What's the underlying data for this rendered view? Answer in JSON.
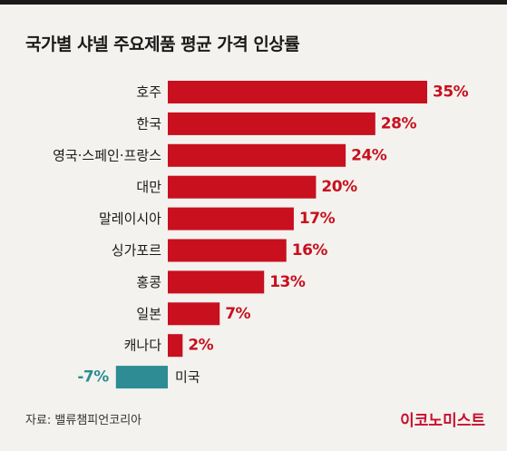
{
  "title": "국가별 샤넬 주요제품 평균 가격 인상률",
  "source": "자료: 밸류챔피언코리아",
  "brand": "이코노미스트",
  "colors": {
    "positive": "#c8101e",
    "negative": "#2d8c94",
    "text": "#1a1a1a"
  },
  "chart_data": {
    "type": "bar",
    "orientation": "horizontal",
    "categories": [
      "호주",
      "한국",
      "영국·스페인·프랑스",
      "대만",
      "말레이시아",
      "싱가포르",
      "홍콩",
      "일본",
      "캐나다",
      "미국"
    ],
    "values": [
      35,
      28,
      24,
      20,
      17,
      16,
      13,
      7,
      2,
      -7
    ],
    "value_labels": [
      "35%",
      "28%",
      "24%",
      "20%",
      "17%",
      "16%",
      "13%",
      "7%",
      "2%",
      "-7%"
    ],
    "title": "국가별 샤넬 주요제품 평균 가격 인상률",
    "xlabel": "",
    "ylabel": "",
    "xlim": [
      -7,
      35
    ],
    "grid": false,
    "legend": "none"
  }
}
